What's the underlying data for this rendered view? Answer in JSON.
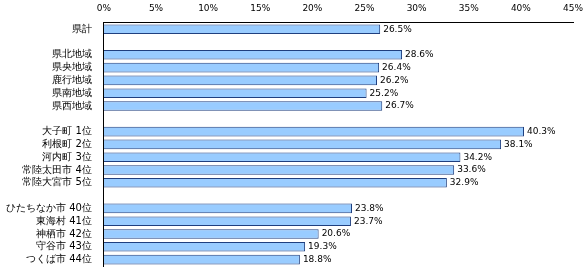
{
  "chart_data": {
    "type": "bar",
    "orientation": "horizontal",
    "categories": [
      "県計",
      null,
      "県北地域",
      "県央地域",
      "鹿行地域",
      "県南地域",
      "県西地域",
      null,
      "大子町 1位",
      "利根町 2位",
      "河内町 3位",
      "常陸太田市 4位",
      "常陸大宮市 5位",
      null,
      "ひたちなか市 40位",
      "東海村 41位",
      "神栖市 42位",
      "守谷市 43位",
      "つくば市 44位"
    ],
    "values": [
      26.5,
      null,
      28.6,
      26.4,
      26.2,
      25.2,
      26.7,
      null,
      40.3,
      38.1,
      34.2,
      33.6,
      32.9,
      null,
      23.8,
      23.7,
      20.6,
      19.3,
      18.8
    ],
    "value_labels": [
      "26.5%",
      null,
      "28.6%",
      "26.4%",
      "26.2%",
      "25.2%",
      "26.7%",
      null,
      "40.3%",
      "38.1%",
      "34.2%",
      "33.6%",
      "32.9%",
      null,
      "23.8%",
      "23.7%",
      "20.6%",
      "19.3%",
      "18.8%"
    ],
    "color": "#99ccff",
    "xlim": [
      0,
      45
    ],
    "xticks": [
      {
        "value": 0,
        "label": "0%"
      },
      {
        "value": 5,
        "label": "5%"
      },
      {
        "value": 10,
        "label": "10%"
      },
      {
        "value": 15,
        "label": "15%"
      },
      {
        "value": 20,
        "label": "20%"
      },
      {
        "value": 25,
        "label": "25%"
      },
      {
        "value": 30,
        "label": "30%"
      },
      {
        "value": 35,
        "label": "35%"
      },
      {
        "value": 40,
        "label": "40%"
      },
      {
        "value": 45,
        "label": "45%"
      }
    ],
    "grid": false,
    "data_labels": true
  }
}
